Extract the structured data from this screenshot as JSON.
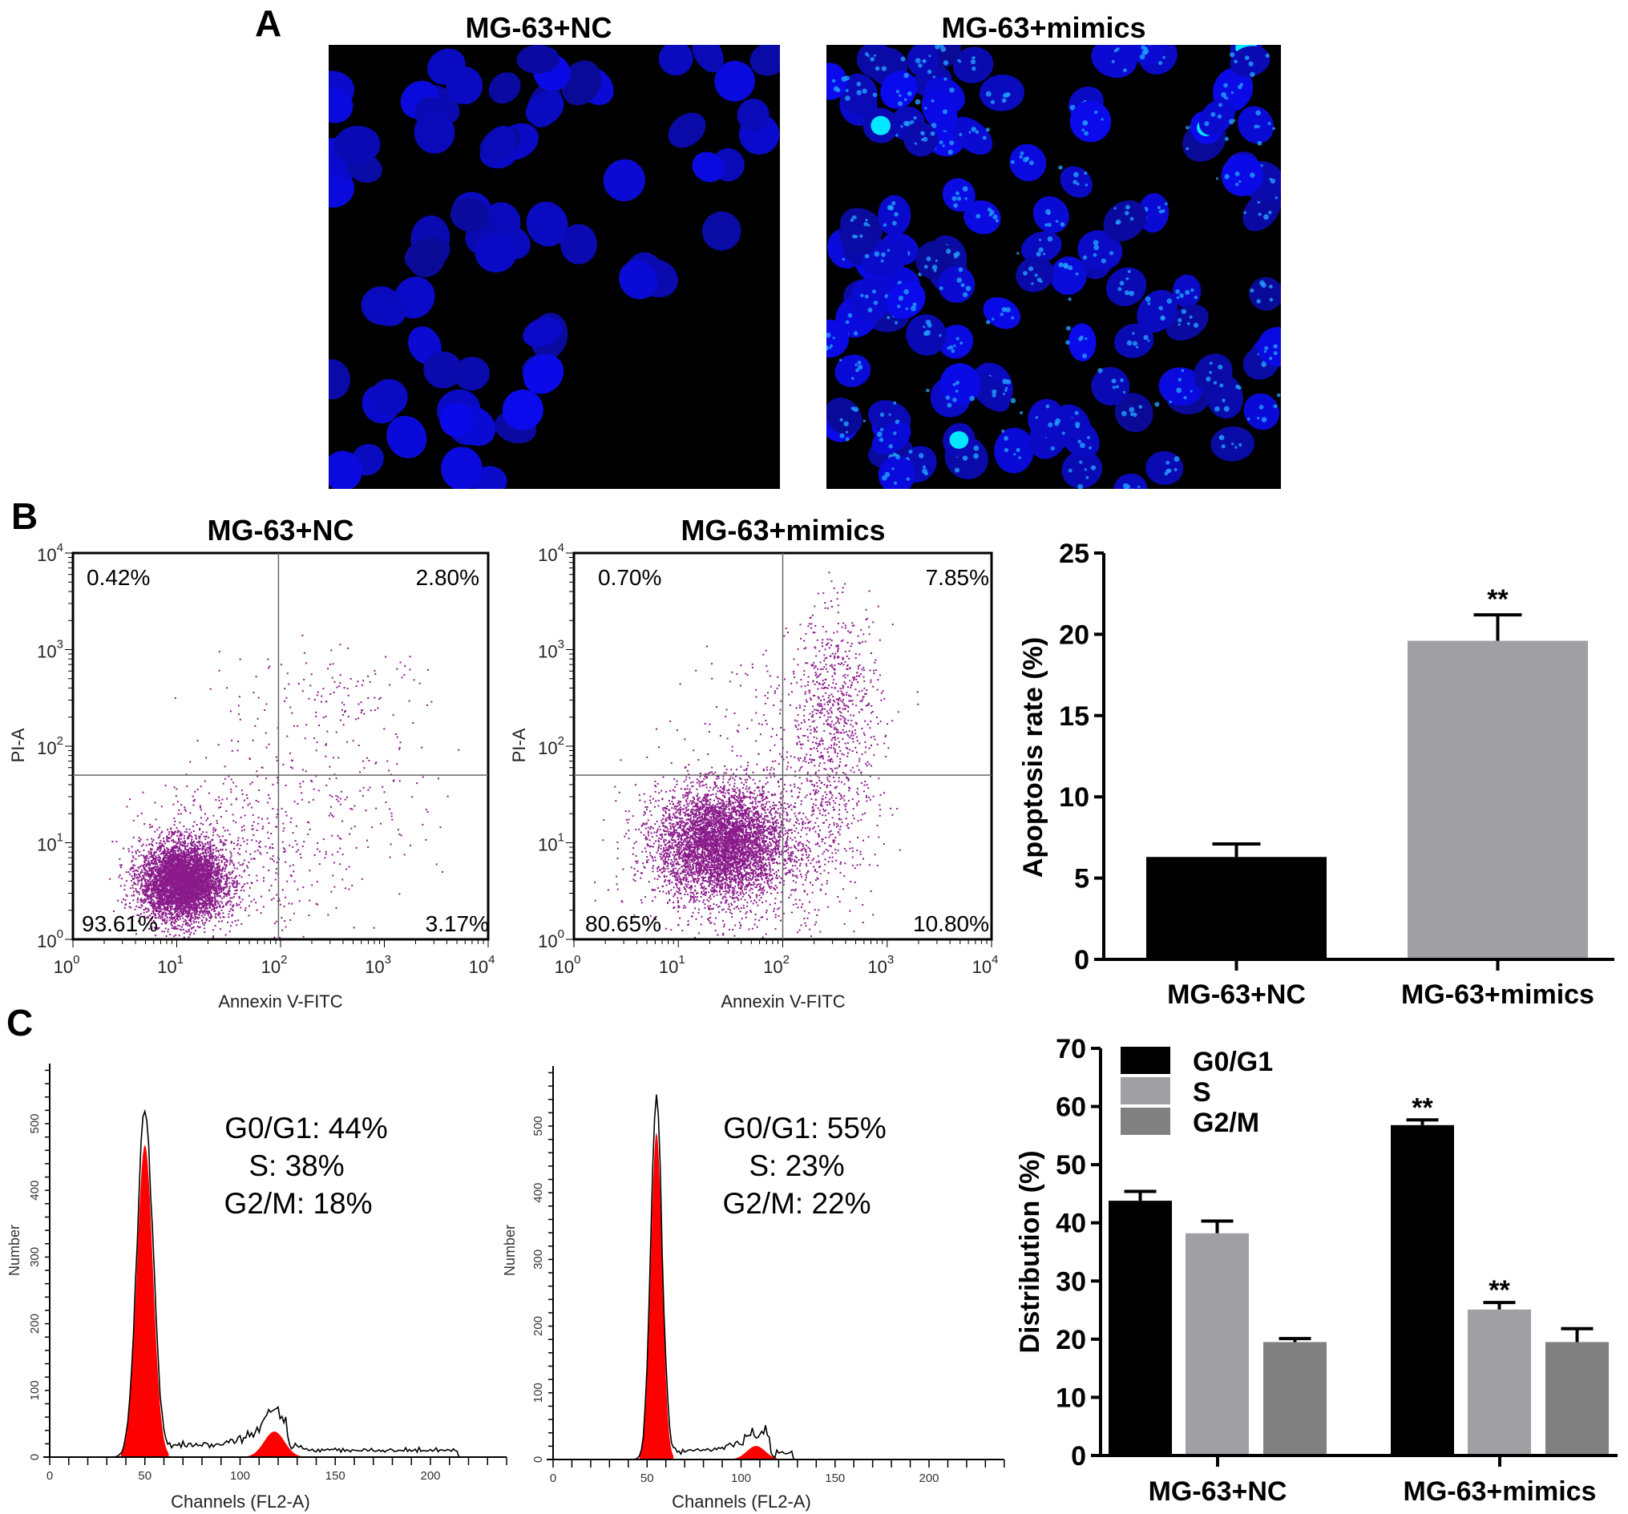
{
  "panel_labels": {
    "a": "A",
    "b": "B",
    "c": "C"
  },
  "panel_a": {
    "titles": [
      "MG-63+NC",
      "MG-63+mimics"
    ]
  },
  "colors": {
    "black_bar": "#000000",
    "light_gray": "#a0a0a4",
    "dark_gray": "#808080",
    "nuclei_blue": "#1a1af0",
    "cyan": "#00e8ff",
    "dots": "#8a1a8a",
    "hist_fill": "#ff0000"
  },
  "chart_data": [
    {
      "type": "scatter",
      "title": "MG-63+NC",
      "xlabel": "Annexin V-FITC",
      "ylabel": "PI-A",
      "scale": "log",
      "xlim": [
        1,
        10000
      ],
      "ylim": [
        1,
        10000
      ],
      "tick_base": "10",
      "tick_exponents": [
        "0",
        "1",
        "2",
        "3",
        "4"
      ],
      "quadrants": {
        "upper_left": "0.42%",
        "upper_right": "2.80%",
        "lower_left": "93.61%",
        "lower_right": "3.17%"
      }
    },
    {
      "type": "scatter",
      "title": "MG-63+mimics",
      "xlabel": "Annexin V-FITC",
      "ylabel": "PI-A",
      "scale": "log",
      "xlim": [
        1,
        10000
      ],
      "ylim": [
        1,
        10000
      ],
      "tick_base": "10",
      "tick_exponents": [
        "0",
        "1",
        "2",
        "3",
        "4"
      ],
      "quadrants": {
        "upper_left": "0.70%",
        "upper_right": "7.85%",
        "lower_left": "80.65%",
        "lower_right": "10.80%"
      }
    },
    {
      "type": "bar",
      "categories": [
        "MG-63+NC",
        "MG-63+mimics"
      ],
      "values": [
        6.3,
        19.6
      ],
      "errors": [
        0.8,
        1.6
      ],
      "significance": [
        "",
        "**"
      ],
      "ylabel": "Apoptosis rate (%)",
      "ylim": [
        0,
        25
      ],
      "yticks": [
        "0",
        "5",
        "10",
        "15",
        "20",
        "25"
      ]
    },
    {
      "type": "area",
      "xlabel": "Channels (FL2-A)",
      "ylabel": "Number",
      "xticks": [
        "0",
        "50",
        "100",
        "150",
        "200"
      ],
      "yticks": [
        "0",
        "100",
        "200",
        "300",
        "400",
        "500"
      ],
      "annotations": [
        "G0/G1: 44%",
        "S: 38%",
        "G2/M: 18%"
      ],
      "peaks": {
        "g1_channel": 50,
        "g1_height": 520,
        "g2_channel": 118,
        "g2_height": 85
      }
    },
    {
      "type": "area",
      "xlabel": "Channels (FL2-A)",
      "ylabel": "Number",
      "xticks": [
        "0",
        "50",
        "100",
        "150",
        "200"
      ],
      "yticks": [
        "0",
        "100",
        "200",
        "300",
        "400",
        "500"
      ],
      "annotations": [
        "G0/G1: 55%",
        "S: 23%",
        "G2/M: 22%"
      ],
      "peaks": {
        "g1_channel": 55,
        "g1_height": 545,
        "g2_channel": 108,
        "g2_height": 45
      }
    },
    {
      "type": "bar",
      "categories": [
        "MG-63+NC",
        "MG-63+mimics"
      ],
      "series": [
        {
          "name": "G0/G1",
          "values": [
            43.8,
            56.8
          ],
          "errors": [
            1.6,
            0.9
          ],
          "significance": [
            "",
            "**"
          ]
        },
        {
          "name": "S",
          "values": [
            38.2,
            25.1
          ],
          "errors": [
            2.1,
            1.2
          ],
          "significance": [
            "",
            "**"
          ]
        },
        {
          "name": "G2/M",
          "values": [
            19.5,
            19.5
          ],
          "errors": [
            0.6,
            2.3
          ],
          "significance": [
            "",
            ""
          ]
        }
      ],
      "ylabel": "Distribution (%)",
      "ylim": [
        0,
        70
      ],
      "yticks": [
        "0",
        "10",
        "20",
        "30",
        "40",
        "50",
        "60",
        "70"
      ],
      "legend": "top-left"
    }
  ]
}
